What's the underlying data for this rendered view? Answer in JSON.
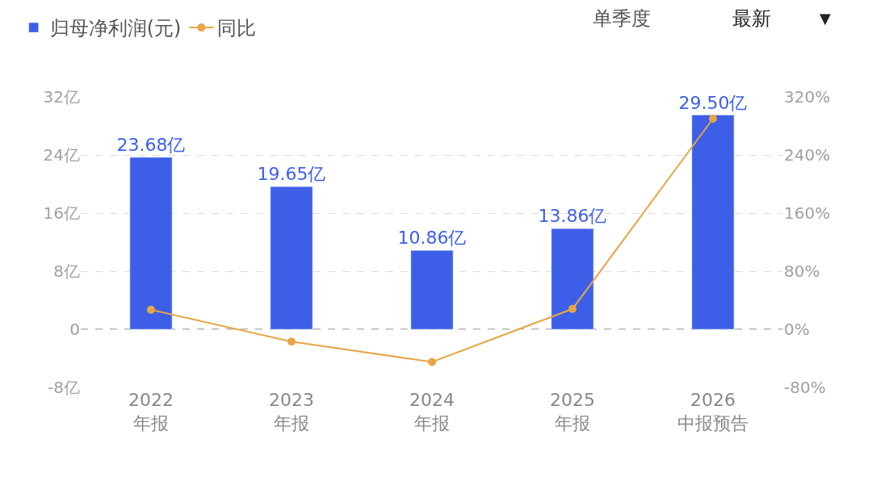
{
  "chart_data": {
    "type": "bar",
    "categories": [
      "2022年报",
      "2023年报",
      "2024年报",
      "2025年报",
      "2026中报预告"
    ],
    "series": [
      {
        "name": "归母净利润(元)",
        "color": "#3d5fe8",
        "values": [
          23.68,
          19.65,
          10.86,
          13.86,
          29.5
        ],
        "value_labels": [
          "23.68亿",
          "19.65亿",
          "10.86亿",
          "13.86亿",
          "29.50亿"
        ]
      },
      {
        "name": "同比",
        "type": "line",
        "axis": "y2",
        "color": "#e8a547",
        "marker": "circle",
        "line_style": "solid",
        "values": [
          27,
          -17,
          -45,
          28,
          290
        ]
      }
    ],
    "ylim": [
      -8,
      32
    ],
    "yticks": [
      {
        "value": -8,
        "label": "-8亿"
      },
      0,
      {
        "value": 8,
        "label": "8亿"
      },
      {
        "value": 16,
        "label": "16亿"
      },
      {
        "value": 24,
        "label": "24亿"
      },
      {
        "value": 32,
        "label": "32亿"
      }
    ],
    "y2lim": [
      -80,
      320
    ],
    "y2ticks": [
      {
        "value": -80,
        "label": "-80%"
      },
      {
        "value": 0,
        "label": "0%"
      },
      {
        "value": 80,
        "label": "80%"
      },
      {
        "value": 160,
        "label": "160%"
      },
      {
        "value": 240,
        "label": "240%"
      },
      {
        "value": 320,
        "label": "320%"
      }
    ],
    "grid": "y",
    "ref_lines": [
      {
        "axis": "y",
        "value": 0,
        "color": "#999999",
        "line_style": "dashed"
      }
    ],
    "legend": "top left",
    "annotations": [
      "单季度",
      "最新",
      "▼"
    ]
  }
}
